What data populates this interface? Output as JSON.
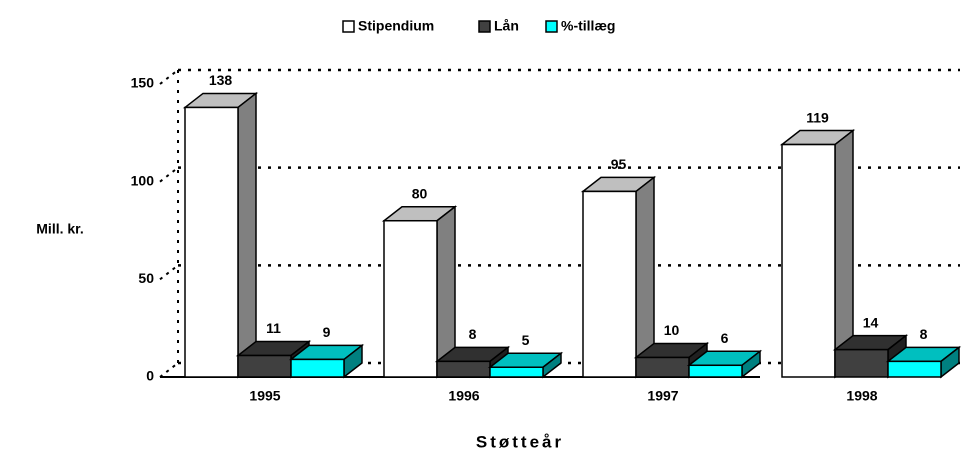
{
  "chart_data": {
    "type": "bar3d",
    "categories": [
      "1995",
      "1996",
      "1997",
      "1998"
    ],
    "series": [
      {
        "name": "Stipendium",
        "color": "#ffffff",
        "values": [
          138,
          80,
          95,
          119
        ]
      },
      {
        "name": "Lån",
        "color": "#404040",
        "values": [
          11,
          8,
          10,
          14
        ]
      },
      {
        "name": "%-tillæg",
        "color": "#00ffff",
        "values": [
          9,
          5,
          6,
          8
        ]
      }
    ],
    "ylim": [
      0,
      150
    ],
    "yticks": [
      0,
      50,
      100,
      150
    ],
    "y_label": "Mill. kr.",
    "x_label": "Støtteår",
    "grid": true,
    "legend": "top"
  }
}
